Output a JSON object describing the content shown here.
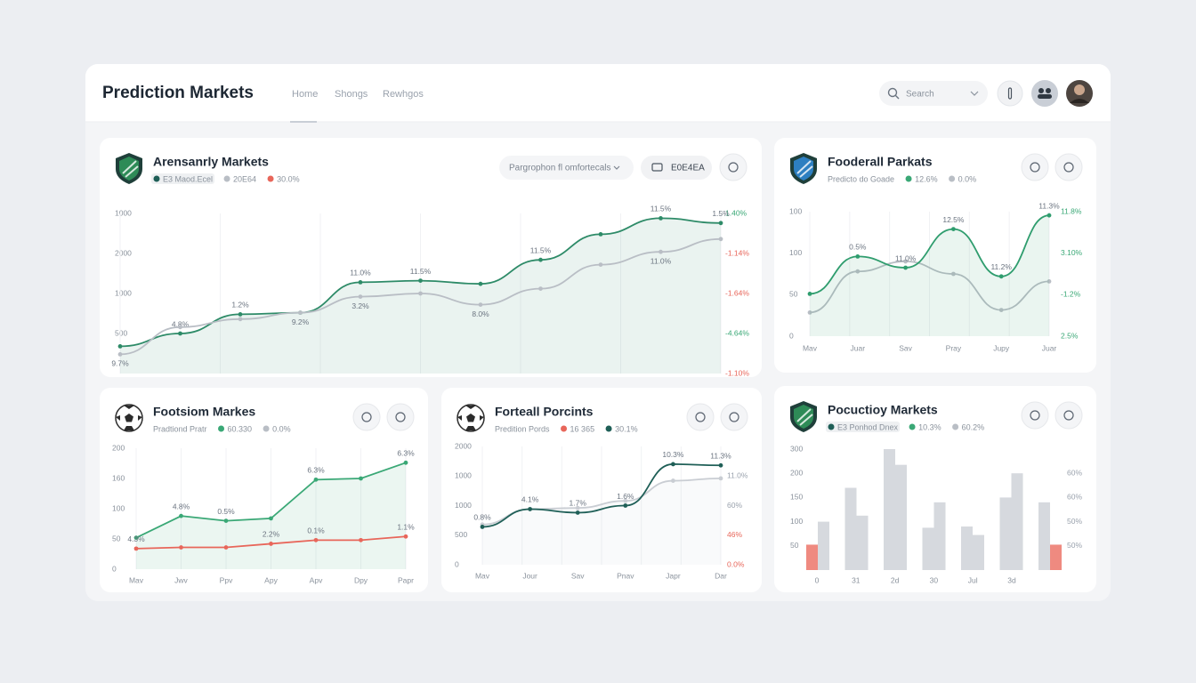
{
  "header": {
    "title": "Prediction Markets",
    "nav": [
      "Home",
      "Shongs",
      "Rewhgos"
    ],
    "search": "Search"
  },
  "cards": [
    {
      "title": "Arensanrly Markets",
      "legend": [
        {
          "label": "E3 Maod.Ecel",
          "color": "#1f5f57",
          "boxed": true
        },
        {
          "label": "20E64",
          "color": "#b9bec5"
        },
        {
          "label": "30.0%",
          "color": "#e8665a"
        }
      ],
      "controls": [
        "Pargrophon fl omfortecals",
        "E0E4EA"
      ],
      "chart": {
        "type": "line",
        "curve": "smooth",
        "ylim": [
          0,
          100
        ],
        "y_labels": [
          "1000",
          "2000",
          "1000",
          "500"
        ],
        "y_labels_right": [
          {
            "text": "1.40%",
            "color": "#3aa876"
          },
          {
            "text": "-1.14%",
            "color": "#e8665a"
          },
          {
            "text": "-1.64%",
            "color": "#e8665a"
          },
          {
            "text": "-4.64%",
            "color": "#3aa876"
          },
          {
            "text": "-1.10%",
            "color": "#e8665a"
          }
        ],
        "series": [
          {
            "color": "#2e8b68",
            "area": true,
            "label_position": "above",
            "values": [
              17,
              25,
              37,
              38,
              57,
              58,
              56,
              71,
              87,
              97,
              94
            ],
            "point_labels": [
              null,
              "4.8%",
              "1.2%",
              null,
              "11.0%",
              "11.5%",
              null,
              "11.5%",
              null,
              "11.5%",
              "1.5%"
            ]
          },
          {
            "color": "#b9bec5",
            "label_position": "below",
            "values": [
              12,
              29,
              34,
              38,
              48,
              50,
              43,
              53,
              68,
              76,
              84
            ],
            "point_labels": [
              "9.7%",
              null,
              null,
              "9.2%",
              "3.2%",
              null,
              "8.0%",
              null,
              null,
              "11.0%",
              null
            ]
          }
        ]
      }
    },
    {
      "title": "Fooderall Parkats",
      "legend": [
        {
          "label": "Predicto do Goade"
        },
        {
          "label": "12.6%",
          "color": "#3aa876"
        },
        {
          "label": "0.0%",
          "color": "#b9bec5"
        }
      ],
      "chart": {
        "type": "line",
        "curve": "smooth",
        "ylim": [
          0,
          100
        ],
        "y_labels": [
          "100",
          "100",
          "50",
          "0"
        ],
        "y_labels_right": [
          {
            "text": "11.8%",
            "color": "#3aa876"
          },
          {
            "text": "3.10%",
            "color": "#3aa876"
          },
          {
            "text": "-1.2%",
            "color": "#3aa876"
          },
          {
            "text": "2.5%",
            "color": "#3aa876"
          }
        ],
        "x_labels": [
          "Mav",
          "Juar",
          "Sav",
          "Pray",
          "Jupy",
          "Juar"
        ],
        "series": [
          {
            "color": "#b9bec5",
            "values": [
              19,
              52,
              60,
              50,
              21,
              44
            ]
          },
          {
            "color": "#2f9d6e",
            "area": true,
            "label_position": "above",
            "values": [
              34,
              64,
              55,
              86,
              48,
              97
            ],
            "point_labels": [
              null,
              "0.5%",
              "11.0%",
              "12.5%",
              "11.2%",
              "11.3%"
            ]
          }
        ]
      }
    },
    {
      "title": "Footsiom Markes",
      "legend": [
        {
          "label": "Pradtiond Pratr"
        },
        {
          "label": "60.330",
          "color": "#3aa876"
        },
        {
          "label": "0.0%",
          "color": "#b9bec5"
        }
      ],
      "chart": {
        "type": "line",
        "curve": "linear",
        "ylim": [
          0,
          100
        ],
        "y_labels": [
          "200",
          "160",
          "100",
          "50",
          "0"
        ],
        "x_labels": [
          "Mav",
          "Jwv",
          "Ppv",
          "Apy",
          "Apv",
          "Dpy",
          "Papr"
        ],
        "series": [
          {
            "color": "#3aa876",
            "area": true,
            "label_position": "above",
            "values": [
              26,
              44,
              40,
              42,
              74,
              75,
              88
            ],
            "point_labels": [
              null,
              "4.8%",
              "0.5%",
              null,
              "6.3%",
              null,
              "6.3%"
            ]
          },
          {
            "color": "#e8665a",
            "label_position": "above",
            "values": [
              17,
              18,
              18,
              21,
              24,
              24,
              27
            ],
            "point_labels": [
              "4.3%",
              null,
              null,
              "2.2%",
              "0.1%",
              null,
              "1.1%"
            ]
          }
        ]
      }
    },
    {
      "title": "Forteall Porcints",
      "legend": [
        {
          "label": "Predition Pords"
        },
        {
          "label": "16 365",
          "color": "#e8665a"
        },
        {
          "label": "30.1%",
          "color": "#1f5f57"
        }
      ],
      "chart": {
        "type": "line",
        "curve": "smooth",
        "ylim": [
          0,
          100
        ],
        "y_labels": [
          "2000",
          "1000",
          "1000",
          "500",
          "0"
        ],
        "y_labels_right": [
          {
            "text": "11.0%",
            "color": "#9aa2ad"
          },
          {
            "text": "60%",
            "color": "#9aa2ad"
          },
          {
            "text": "46%",
            "color": "#e8665a"
          },
          {
            "text": "0.0%",
            "color": "#e8665a"
          }
        ],
        "x_labels": [
          "Mav",
          "Jour",
          "Sav",
          "Pnav",
          "Japr",
          "Dar"
        ],
        "series": [
          {
            "color": "#c9cdd3",
            "area": true,
            "values": [
              34,
              47,
              48,
              54,
              71,
              73
            ]
          },
          {
            "color": "#1f5f57",
            "label_position": "above",
            "values": [
              32,
              47,
              44,
              50,
              85,
              84
            ],
            "point_labels": [
              "0.8%",
              "4.1%",
              "1.7%",
              "1.6%",
              "10.3%",
              "11.3%"
            ]
          }
        ]
      }
    },
    {
      "title": "Pocuctioy Markets",
      "legend": [
        {
          "label": "E3 Ponhod Dnex",
          "color": "#1f5f57",
          "boxed": true
        },
        {
          "label": "10.3%",
          "color": "#3aa876"
        },
        {
          "label": "60.2%",
          "color": "#b9bec5"
        }
      ],
      "chart": {
        "type": "bar",
        "ylim": [
          0,
          100
        ],
        "y_labels": [
          "300",
          "200",
          "150",
          "100",
          "50"
        ],
        "y_labels_right": [
          {
            "text": "60%",
            "color": "#9aa2ad"
          },
          {
            "text": "60%",
            "color": "#9aa2ad"
          },
          {
            "text": "50%",
            "color": "#9aa2ad"
          },
          {
            "text": "50%",
            "color": "#9aa2ad"
          }
        ],
        "x_labels": [
          "0",
          "31",
          "2d",
          "30",
          "Jul",
          "3d"
        ],
        "series": [
          {
            "values": [
              21,
              40,
              68,
              45,
              100,
              87,
              35,
              56,
              36,
              29,
              60,
              80,
              56,
              21
            ],
            "colors": [
              "#ef8a80",
              "#d6d9de",
              "#d6d9de",
              "#d6d9de",
              "#d6d9de",
              "#d6d9de",
              "#d6d9de",
              "#d6d9de",
              "#d6d9de",
              "#d6d9de",
              "#d6d9de",
              "#d6d9de",
              "#d6d9de",
              "#ef8a80"
            ]
          }
        ]
      }
    }
  ]
}
